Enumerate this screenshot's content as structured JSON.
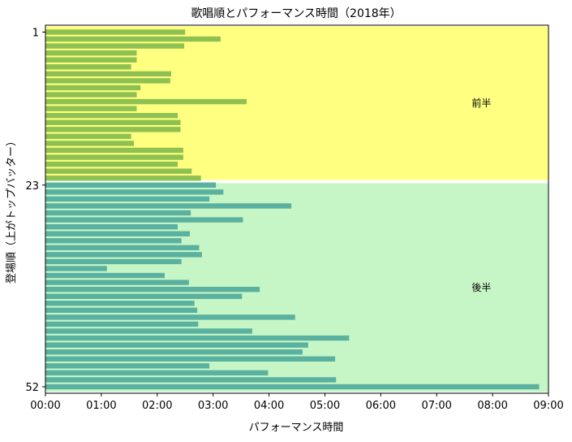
{
  "chart_data": {
    "type": "bar",
    "orientation": "horizontal",
    "title": "歌唱順とパフォーマンス時間（2018年）",
    "xlabel": "パフォーマンス時間",
    "ylabel": "登場順（上がトップバッター）",
    "x_unit": "seconds",
    "xlim": [
      0,
      540
    ],
    "x_ticks": [
      0,
      60,
      120,
      180,
      240,
      300,
      360,
      420,
      480,
      540
    ],
    "x_tick_labels": [
      "00:00",
      "01:00",
      "02:00",
      "03:00",
      "04:00",
      "05:00",
      "06:00",
      "07:00",
      "08:00",
      "09:00"
    ],
    "y_tick_values": [
      1,
      23,
      52
    ],
    "y_tick_labels": [
      "1",
      "23",
      "52"
    ],
    "grid": false,
    "regions": [
      {
        "label": "前半",
        "from": 1,
        "to": 22,
        "color": "#ffff80"
      },
      {
        "label": "後半",
        "from": 23,
        "to": 52,
        "color": "#c6f6c6"
      }
    ],
    "series": [
      {
        "color": "#8fc152",
        "values": [
          150,
          188,
          149,
          98,
          98,
          92,
          135,
          134,
          102,
          98,
          216,
          98,
          142,
          145,
          145,
          92,
          95,
          148,
          148,
          142,
          157,
          167
        ]
      },
      {
        "color": "#5ab19f",
        "values": [
          183,
          191,
          176,
          264,
          156,
          212,
          142,
          155,
          146,
          165,
          168,
          146,
          66,
          128,
          154,
          230,
          211,
          160,
          163,
          268,
          164,
          222,
          326,
          282,
          276,
          311,
          176,
          239,
          312,
          530
        ]
      }
    ]
  }
}
